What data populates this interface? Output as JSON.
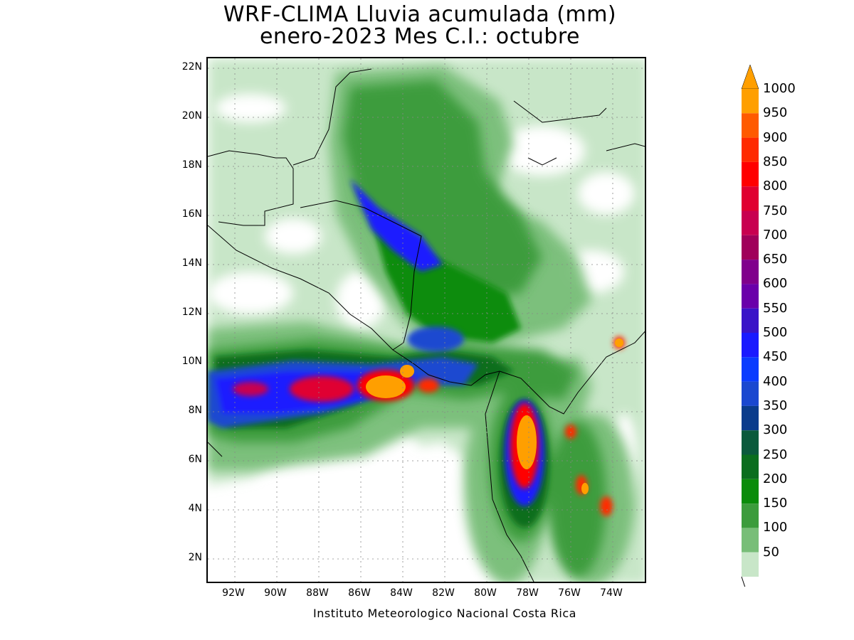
{
  "title": {
    "line1": "WRF-CLIMA Lluvia acumulada (mm)",
    "line2": "enero-2023 Mes C.I.: octubre"
  },
  "credit": "Instituto Meteorologico Nacional Costa Rica",
  "axes": {
    "lat_labels": [
      "22N",
      "20N",
      "18N",
      "16N",
      "14N",
      "12N",
      "10N",
      "8N",
      "6N",
      "4N",
      "2N"
    ],
    "lon_labels": [
      "92W",
      "90W",
      "88W",
      "86W",
      "84W",
      "82W",
      "80W",
      "78W",
      "76W",
      "74W"
    ]
  },
  "colorbar": {
    "labels": [
      "1000",
      "950",
      "900",
      "850",
      "800",
      "750",
      "700",
      "650",
      "600",
      "550",
      "500",
      "450",
      "400",
      "350",
      "300",
      "250",
      "200",
      "150",
      "100",
      "50"
    ],
    "colors": [
      "#ff9f00",
      "#ff5a00",
      "#ff2a00",
      "#ff0000",
      "#e00030",
      "#c80050",
      "#a0005a",
      "#80008c",
      "#6a00aa",
      "#3a14c8",
      "#1a1aff",
      "#0a3cff",
      "#1a48d0",
      "#0a3c8c",
      "#0a5a3c",
      "#0a6e1e",
      "#0a8c0a",
      "#3c9c3c",
      "#78be78",
      "#c8e6c8"
    ]
  },
  "legend_colors": {
    "light_green": "#c8e6c8",
    "mid_green": "#78be78",
    "green": "#3c9c3c",
    "dark_green": "#0a8c0a",
    "blue": "#1a1aff",
    "navy": "#1a48d0",
    "red": "#ff0000",
    "orange": "#ff9f00"
  }
}
